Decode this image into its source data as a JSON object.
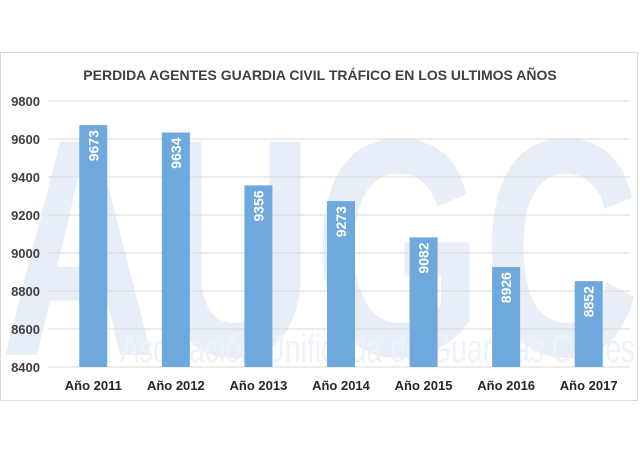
{
  "chart_data": {
    "type": "bar",
    "title": "PERDIDA AGENTES GUARDIA CIVIL TRÁFICO EN LOS ULTIMOS AÑOS",
    "categories": [
      "Año 2011",
      "Año 2012",
      "Año 2013",
      "Año 2014",
      "Año 2015",
      "Año 2016",
      "Año 2017"
    ],
    "values": [
      9673,
      9634,
      9356,
      9273,
      9082,
      8926,
      8852
    ],
    "ylim": [
      8400,
      9800
    ],
    "yticks": [
      8400,
      8600,
      8800,
      9000,
      9200,
      9400,
      9600,
      9800
    ],
    "xlabel": "",
    "ylabel": "",
    "grid": true,
    "bar_color": "#6fa8dc"
  },
  "watermark": {
    "logo_text": "AUGC",
    "subtitle": "Asociación Unificada de Guardias Civiles"
  }
}
